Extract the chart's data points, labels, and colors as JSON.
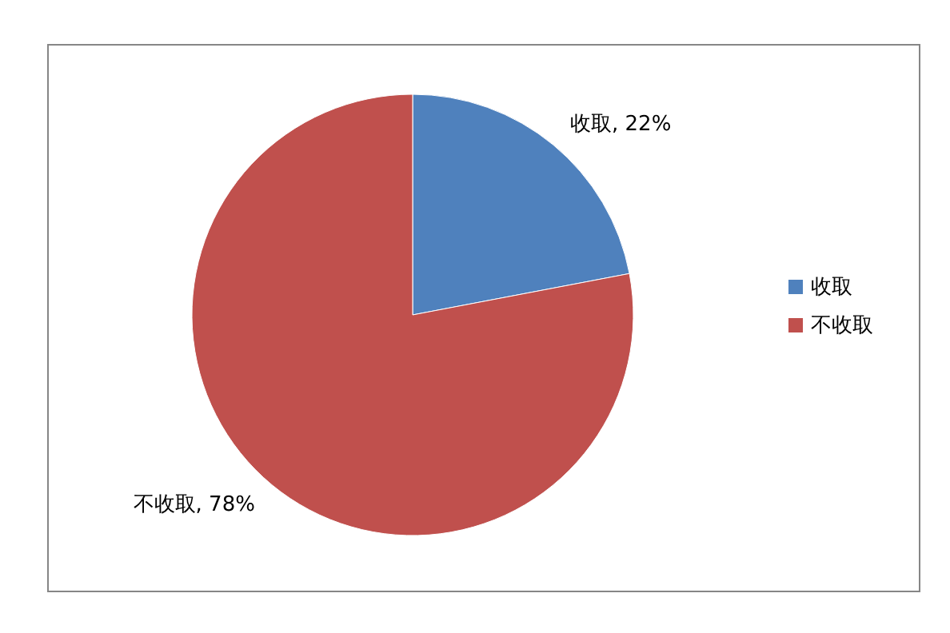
{
  "chart_data": {
    "type": "pie",
    "categories": [
      "收取",
      "不收取"
    ],
    "values": [
      22,
      78
    ],
    "colors": [
      "#4f81bd",
      "#c0504d"
    ],
    "value_labels": [
      "收取, 22%",
      "不收取, 78%"
    ],
    "legend": "right"
  }
}
